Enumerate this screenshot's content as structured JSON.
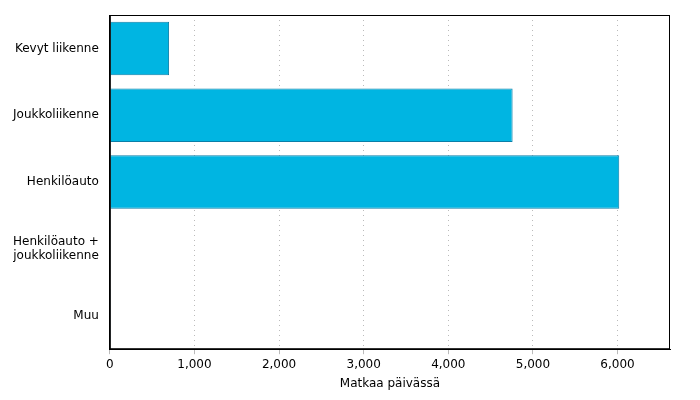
{
  "chart_data": {
    "type": "bar",
    "orientation": "horizontal",
    "categories": [
      "Kevyt liikenne",
      "Joukkoliikenne",
      "Henkilöauto",
      [
        "Henkilöauto +",
        "joukkoliikenne"
      ],
      "Muu"
    ],
    "values": [
      700,
      4760,
      6020,
      3,
      2
    ],
    "color": "#00b5e2",
    "x_label": "Matkaa päivässä",
    "xlim": [
      0,
      6620
    ],
    "xticks": [
      0,
      1000,
      2000,
      3000,
      4000,
      5000,
      6000
    ],
    "grid": true
  }
}
